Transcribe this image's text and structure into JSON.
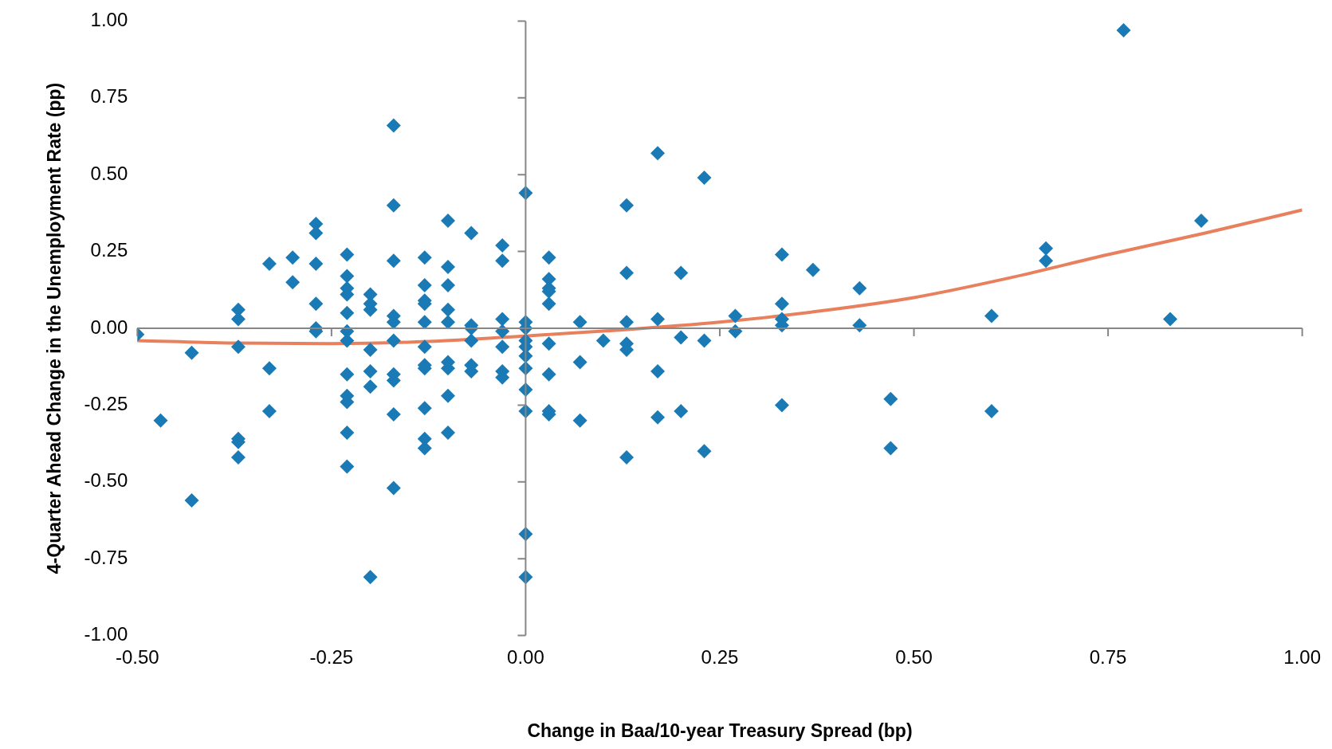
{
  "chart_data": {
    "type": "scatter",
    "xlabel": "Change in Baa/10-year Treasury Spread (bp)",
    "ylabel": "4-Quarter Ahead Change in the Unemployment Rate (pp)",
    "xlim": [
      -0.5,
      1.0
    ],
    "xticks": [
      {
        "value": -0.5,
        "label": "-0.50"
      },
      {
        "value": -0.25,
        "label": "-0.25"
      },
      {
        "value": 0,
        "label": "0.00"
      },
      {
        "value": 0.25,
        "label": "0.25"
      },
      {
        "value": 0.5,
        "label": "0.50"
      },
      {
        "value": 0.75,
        "label": "0.75"
      },
      {
        "value": 1.0,
        "label": "1.00"
      }
    ],
    "ylim": [
      -1.0,
      1.0
    ],
    "yticks": [
      {
        "value": -1.0,
        "label": "-1.00"
      },
      {
        "value": -0.75,
        "label": "-0.75"
      },
      {
        "value": -0.5,
        "label": "-0.50"
      },
      {
        "value": -0.25,
        "label": "-0.25"
      },
      {
        "value": 0,
        "label": "0.00"
      },
      {
        "value": 0.25,
        "label": "0.25"
      },
      {
        "value": 0.5,
        "label": "0.50"
      },
      {
        "value": 0.75,
        "label": "0.75"
      },
      {
        "value": 1.0,
        "label": "1.00"
      }
    ],
    "legend": false,
    "marker": "diamond",
    "series": [
      {
        "type": "scatter",
        "color": "#1a7ab5",
        "x": [
          -0.5,
          -0.47,
          -0.43,
          -0.43,
          -0.37,
          -0.37,
          -0.37,
          -0.37,
          -0.37,
          -0.37,
          -0.33,
          -0.33,
          -0.33,
          -0.3,
          -0.3,
          -0.27,
          -0.27,
          -0.27,
          -0.27,
          -0.27,
          -0.27,
          -0.23,
          -0.23,
          -0.23,
          -0.23,
          -0.23,
          -0.23,
          -0.23,
          -0.23,
          -0.23,
          -0.23,
          -0.23,
          -0.23,
          -0.2,
          -0.2,
          -0.2,
          -0.2,
          -0.2,
          -0.2,
          -0.2,
          -0.17,
          -0.17,
          -0.17,
          -0.17,
          -0.17,
          -0.17,
          -0.17,
          -0.17,
          -0.17,
          -0.17,
          -0.13,
          -0.13,
          -0.13,
          -0.13,
          -0.13,
          -0.13,
          -0.13,
          -0.13,
          -0.13,
          -0.13,
          -0.13,
          -0.1,
          -0.1,
          -0.1,
          -0.1,
          -0.1,
          -0.1,
          -0.1,
          -0.1,
          -0.1,
          -0.07,
          -0.07,
          -0.07,
          -0.07,
          -0.07,
          -0.07,
          -0.03,
          -0.03,
          -0.03,
          -0.03,
          -0.03,
          -0.03,
          -0.03,
          0,
          0,
          0,
          0,
          0,
          0,
          0,
          0,
          0,
          0,
          0,
          0.03,
          0.03,
          0.03,
          0.03,
          0.03,
          0.03,
          0.03,
          0.03,
          0.03,
          0.07,
          0.07,
          0.07,
          0.1,
          0.13,
          0.13,
          0.13,
          0.13,
          0.13,
          0.13,
          0.17,
          0.17,
          0.17,
          0.17,
          0.2,
          0.2,
          0.2,
          0.23,
          0.23,
          0.23,
          0.27,
          0.27,
          0.33,
          0.33,
          0.33,
          0.33,
          0.33,
          0.37,
          0.43,
          0.43,
          0.47,
          0.47,
          0.6,
          0.6,
          0.67,
          0.67,
          0.77,
          0.83,
          0.87
        ],
        "values": [
          -0.02,
          -0.3,
          -0.08,
          -0.56,
          0.06,
          0.03,
          -0.06,
          -0.36,
          -0.37,
          -0.42,
          0.21,
          -0.13,
          -0.27,
          0.23,
          0.15,
          0.34,
          0.31,
          0.21,
          0.08,
          0,
          -0.01,
          0.24,
          0.17,
          0.13,
          0.11,
          0.05,
          -0.01,
          -0.04,
          -0.15,
          -0.22,
          -0.24,
          -0.34,
          -0.45,
          0.11,
          0.08,
          0.06,
          -0.07,
          -0.14,
          -0.19,
          -0.81,
          0.66,
          0.4,
          0.22,
          0.04,
          0.02,
          -0.04,
          -0.15,
          -0.17,
          -0.28,
          -0.52,
          0.23,
          0.14,
          0.09,
          0.08,
          0.02,
          -0.06,
          -0.12,
          -0.13,
          -0.26,
          -0.36,
          -0.39,
          0.35,
          0.2,
          0.14,
          0.06,
          0.02,
          -0.11,
          -0.13,
          -0.22,
          -0.34,
          0.31,
          0.01,
          0,
          -0.04,
          -0.12,
          -0.14,
          0.27,
          0.22,
          0.03,
          -0.01,
          -0.06,
          -0.14,
          -0.16,
          0.44,
          0.02,
          0,
          -0.04,
          -0.06,
          -0.09,
          -0.13,
          -0.2,
          -0.27,
          -0.67,
          -0.81,
          0.23,
          0.16,
          0.13,
          0.12,
          0.08,
          -0.05,
          -0.15,
          -0.27,
          -0.28,
          0.02,
          -0.11,
          -0.3,
          -0.04,
          0.4,
          0.18,
          0.02,
          -0.05,
          -0.07,
          -0.42,
          0.57,
          0.03,
          -0.14,
          -0.29,
          0.18,
          -0.03,
          -0.27,
          0.49,
          -0.04,
          -0.4,
          0.04,
          -0.01,
          0.24,
          0.08,
          0.03,
          0.01,
          -0.25,
          0.19,
          0.13,
          0.01,
          -0.23,
          -0.39,
          0.04,
          -0.27,
          0.26,
          0.22,
          0.97,
          0.03,
          0.35
        ]
      },
      {
        "type": "line",
        "color": "#e8805e",
        "marker": "none",
        "line_style": "solid",
        "x": [
          -0.5,
          -0.375,
          -0.25,
          -0.125,
          0,
          0.125,
          0.25,
          0.375,
          0.5,
          0.625,
          0.75,
          0.875,
          1.0
        ],
        "values": [
          -0.04,
          -0.048,
          -0.05,
          -0.043,
          -0.025,
          -0.005,
          0.02,
          0.055,
          0.1,
          0.165,
          0.24,
          0.31,
          0.385
        ]
      }
    ]
  }
}
